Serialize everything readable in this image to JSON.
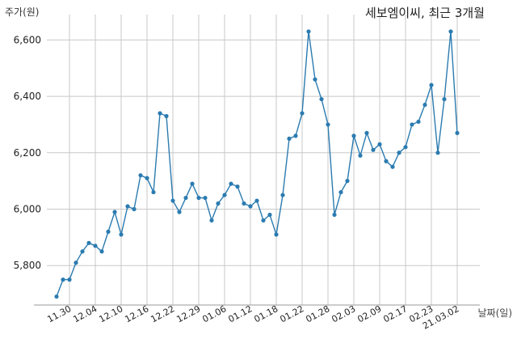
{
  "chart_data": {
    "type": "line",
    "title": "세보엠이씨, 최근 3개월",
    "ylabel": "주가(원)",
    "xlabel": "날짜(일)",
    "ylim": [
      5660,
      6690
    ],
    "yticks": [
      5800,
      6000,
      6200,
      6400,
      6600
    ],
    "ytick_labels": [
      "5,800",
      "6,000",
      "6,200",
      "6,400",
      "6,600"
    ],
    "xtick_labels": [
      "11.30",
      "12.04",
      "12.10",
      "12.16",
      "12.22",
      "12.29",
      "01.06",
      "01.12",
      "01.18",
      "01.22",
      "01.28",
      "02.03",
      "02.09",
      "02.17",
      "02.23",
      "21.03.02"
    ],
    "grid": true,
    "color": "#2b7bb0",
    "values": [
      5690,
      5750,
      5750,
      5810,
      5850,
      5880,
      5870,
      5850,
      5920,
      5990,
      5910,
      6010,
      6000,
      6120,
      6110,
      6060,
      6340,
      6330,
      6030,
      5990,
      6040,
      6090,
      6040,
      6040,
      5960,
      6020,
      6050,
      6090,
      6080,
      6020,
      6010,
      6030,
      5960,
      5980,
      5910,
      6050,
      6250,
      6260,
      6340,
      6630,
      6460,
      6390,
      6300,
      5980,
      6060,
      6100,
      6260,
      6190,
      6270,
      6210,
      6230,
      6170,
      6150,
      6200,
      6220,
      6300,
      6310,
      6370,
      6440,
      6200,
      6390,
      6630,
      6270
    ]
  }
}
